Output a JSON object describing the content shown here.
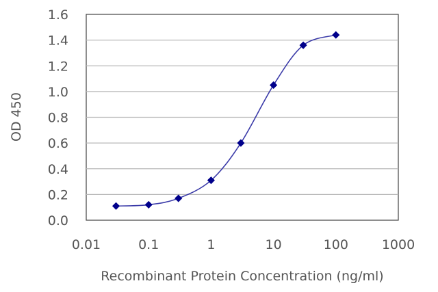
{
  "chart_data": {
    "type": "line",
    "xlabel": "Recombinant Protein Concentration (ng/ml)",
    "ylabel": "OD 450",
    "x_scale": "log",
    "xlim": [
      0.01,
      1000
    ],
    "ylim": [
      0.0,
      1.6
    ],
    "x_ticks": [
      "0.01",
      "0.1",
      "1",
      "10",
      "100",
      "1000"
    ],
    "y_ticks": [
      "0.0",
      "0.2",
      "0.4",
      "0.6",
      "0.8",
      "1.0",
      "1.2",
      "1.4",
      "1.6"
    ],
    "grid": "horizontal",
    "legend": "none",
    "series": [
      {
        "color": "#00008b",
        "line_color": "#3a3aa8",
        "marker": "diamond",
        "x": [
          0.03,
          0.1,
          0.3,
          1,
          3,
          10,
          30,
          100
        ],
        "y": [
          0.11,
          0.12,
          0.17,
          0.31,
          0.6,
          1.05,
          1.36,
          1.44
        ]
      }
    ]
  }
}
